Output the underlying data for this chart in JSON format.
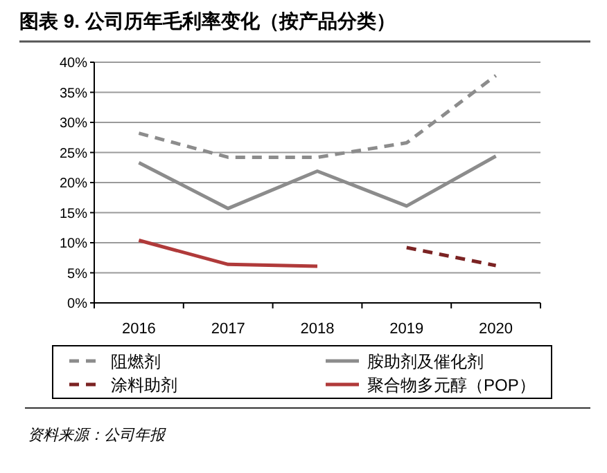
{
  "chart_data": {
    "type": "line",
    "title": "图表 9. 公司历年毛利率变化（按产品分类）",
    "categories": [
      "2016",
      "2017",
      "2018",
      "2019",
      "2020"
    ],
    "series": [
      {
        "name": "阻燃剂",
        "color": "#8c8c8c",
        "line_style": "dashed",
        "values": [
          28.2,
          24.2,
          24.2,
          26.6,
          37.8
        ]
      },
      {
        "name": "胺助剂及催化剂",
        "color": "#8c8c8c",
        "line_style": "solid",
        "values": [
          23.3,
          15.7,
          21.9,
          16.1,
          24.4
        ]
      },
      {
        "name": "涂料助剂",
        "color": "#7b2323",
        "line_style": "dashed",
        "values": [
          null,
          null,
          null,
          9.2,
          6.2
        ]
      },
      {
        "name": "聚合物多元醇（POP）",
        "color": "#b03a3a",
        "line_style": "solid",
        "values": [
          10.4,
          6.4,
          6.1,
          null,
          null
        ]
      }
    ],
    "ylim": [
      0,
      40
    ],
    "yticks": [
      {
        "value": 0,
        "label": "0%"
      },
      {
        "value": 5,
        "label": "5%"
      },
      {
        "value": 10,
        "label": "10%"
      },
      {
        "value": 15,
        "label": "15%"
      },
      {
        "value": 20,
        "label": "20%"
      },
      {
        "value": 25,
        "label": "25%"
      },
      {
        "value": 30,
        "label": "30%"
      },
      {
        "value": 35,
        "label": "35%"
      },
      {
        "value": 40,
        "label": "40%"
      }
    ],
    "grid": "y",
    "legend": "bottom",
    "marker": "none",
    "annotations": [
      "资料来源：公司年报"
    ]
  }
}
